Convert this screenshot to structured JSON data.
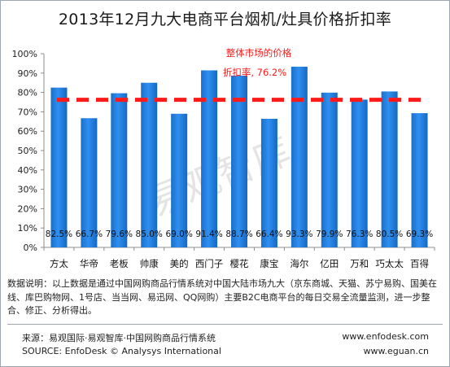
{
  "title": "2013年12月九大电商平台烟机/灶具价格折扣率",
  "chart_data": {
    "type": "bar",
    "categories": [
      "方太",
      "华帝",
      "老板",
      "帅康",
      "美的",
      "西门子",
      "樱花",
      "康宝",
      "海尔",
      "亿田",
      "万和",
      "巧太太",
      "百得"
    ],
    "values": [
      82.5,
      66.7,
      79.6,
      85.0,
      69.0,
      91.4,
      88.7,
      66.4,
      93.3,
      79.9,
      76.3,
      80.5,
      69.3
    ],
    "value_labels": [
      "82.5%",
      "66.7%",
      "79.6%",
      "85.0%",
      "69.0%",
      "91.4%",
      "88.7%",
      "66.4%",
      "93.3%",
      "79.9%",
      "76.3%",
      "80.5%",
      "69.3%"
    ],
    "ylim": [
      0,
      100
    ],
    "yticks": [
      "0%",
      "10%",
      "20%",
      "30%",
      "40%",
      "50%",
      "60%",
      "70%",
      "80%",
      "90%",
      "100%"
    ],
    "reference_line": {
      "value": 76.2,
      "label_line1": "整体市场的价格",
      "label_line2": "折扣率, 76.2%",
      "color": "#ff1a1a"
    },
    "bar_color": "#1f7ad8",
    "grid": false
  },
  "watermark": "易观智库",
  "note": "数据说明：以上数据是通过中国网购商品行情系统对中国大陆市场九大（京东商城、天猫、苏宁易购、国美在线、库巴购物网、1号店、当当网、易迅网、QQ网购）主要B2C电商平台的每日交易全流量监测，进一步整合、修正、分析得出。",
  "footer": {
    "source_cn": "来源：易观国际·易观智库·中国网购商品行情系统",
    "source_en": "SOURCE: EnfoDesk © Analysys International",
    "url1": "www.enfodesk.com",
    "url2": "www.eguan.cn"
  }
}
